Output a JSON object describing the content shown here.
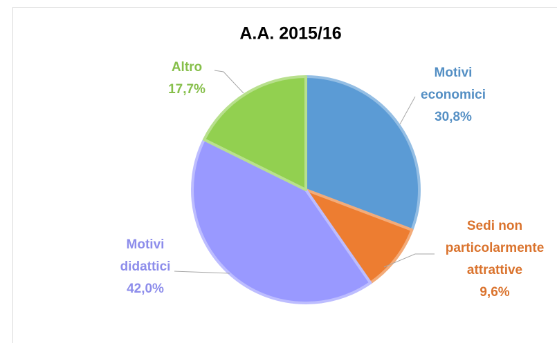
{
  "chart_data": {
    "type": "pie",
    "title": "A.A. 2015/16",
    "categories": [
      "Motivi economici",
      "Sedi non particolarmente attrattive",
      "Motivi didattici",
      "Altro"
    ],
    "values": [
      30.8,
      9.6,
      42.0,
      17.7
    ],
    "value_labels": [
      "30,8%",
      "9,6%",
      "42,0%",
      "17,7%"
    ],
    "colors": [
      "#5b9bd5",
      "#ed7d31",
      "#9999ff",
      "#92d050"
    ]
  }
}
